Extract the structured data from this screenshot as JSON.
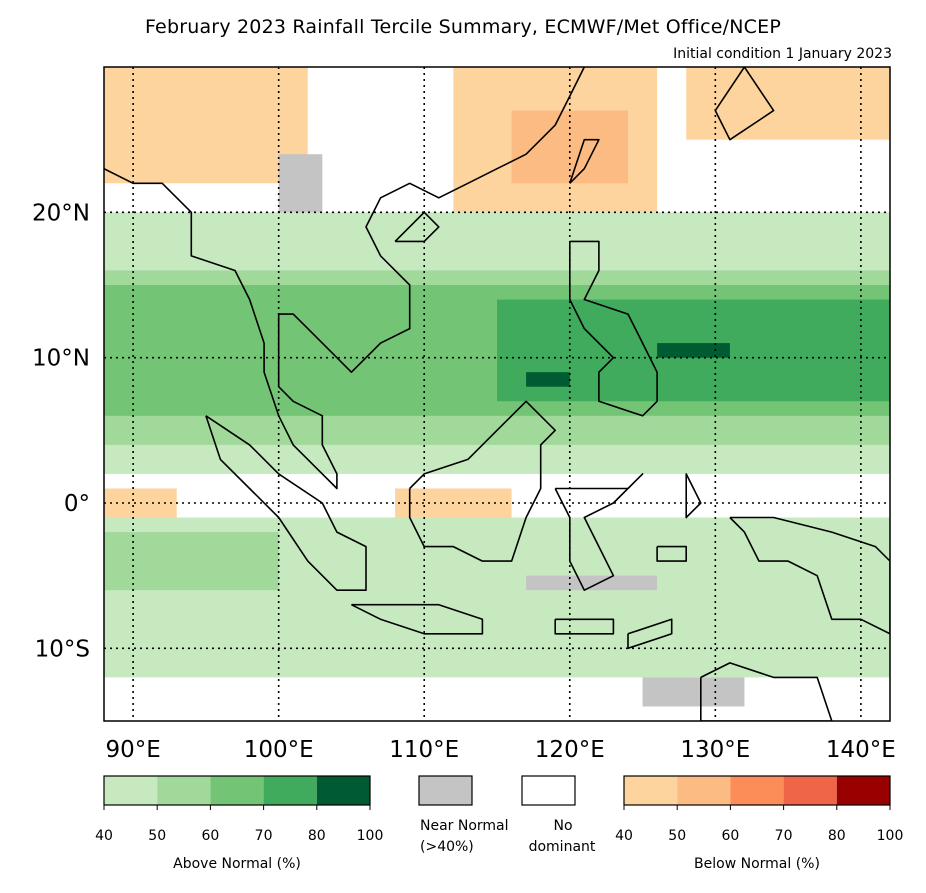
{
  "title": "February 2023 Rainfall Tercile Summary, ECMWF/Met Office/NCEP",
  "subtitle": "Initial condition 1 January 2023",
  "map": {
    "lon_range": [
      88,
      142
    ],
    "lat_range": [
      -15,
      30
    ],
    "lon_ticks": [
      {
        "value": 90,
        "label": "90°E"
      },
      {
        "value": 100,
        "label": "100°E"
      },
      {
        "value": 110,
        "label": "110°E"
      },
      {
        "value": 120,
        "label": "120°E"
      },
      {
        "value": 130,
        "label": "130°E"
      },
      {
        "value": 140,
        "label": "140°E"
      }
    ],
    "lat_ticks": [
      {
        "value": 20,
        "label": "20°N"
      },
      {
        "value": 10,
        "label": "10°N"
      },
      {
        "value": 0,
        "label": "0°"
      },
      {
        "value": -10,
        "label": "10°S"
      }
    ],
    "gridlines": "dotted",
    "colors": {
      "an40": "#c7e9c0",
      "an50": "#a1d99b",
      "an60": "#74c476",
      "an70": "#41ab5d",
      "an80": "#005a32",
      "bn40": "#fdd49e",
      "bn50": "#fdbb84",
      "bn60": "#fc8d59",
      "bn70": "#ef6548",
      "bn80": "#990000",
      "nn": "#c4c4c4",
      "coast": "#000000"
    },
    "regions": [
      {
        "category": "bn40",
        "lon": [
          88,
          102
        ],
        "lat": [
          22,
          30
        ]
      },
      {
        "category": "bn40",
        "lon": [
          112,
          126
        ],
        "lat": [
          20,
          30
        ]
      },
      {
        "category": "bn50",
        "lon": [
          116,
          124
        ],
        "lat": [
          22,
          27
        ]
      },
      {
        "category": "bn40",
        "lon": [
          128,
          142
        ],
        "lat": [
          25,
          30
        ]
      },
      {
        "category": "bn40",
        "lon": [
          88,
          93
        ],
        "lat": [
          -1,
          1
        ]
      },
      {
        "category": "bn40",
        "lon": [
          108,
          116
        ],
        "lat": [
          -4,
          1
        ]
      },
      {
        "category": "bn60",
        "lon": [
          121,
          123
        ],
        "lat": [
          -6,
          -3
        ]
      },
      {
        "category": "an40",
        "lon": [
          88,
          142
        ],
        "lat": [
          -12,
          -1
        ]
      },
      {
        "category": "an50",
        "lon": [
          88,
          100
        ],
        "lat": [
          -6,
          -2
        ]
      },
      {
        "category": "an40",
        "lon": [
          88,
          142
        ],
        "lat": [
          2,
          20
        ]
      },
      {
        "category": "an50",
        "lon": [
          88,
          142
        ],
        "lat": [
          4,
          16
        ]
      },
      {
        "category": "an60",
        "lon": [
          88,
          142
        ],
        "lat": [
          6,
          15
        ]
      },
      {
        "category": "an70",
        "lon": [
          115,
          142
        ],
        "lat": [
          7,
          14
        ]
      },
      {
        "category": "an80",
        "lon": [
          126,
          131
        ],
        "lat": [
          10,
          11
        ]
      },
      {
        "category": "an80",
        "lon": [
          117,
          120
        ],
        "lat": [
          8,
          9
        ]
      },
      {
        "category": "nn",
        "lon": [
          117,
          126
        ],
        "lat": [
          -6,
          -5
        ]
      },
      {
        "category": "nn",
        "lon": [
          125,
          132
        ],
        "lat": [
          -14,
          -12
        ]
      },
      {
        "category": "nn",
        "lon": [
          100,
          103
        ],
        "lat": [
          20,
          24
        ]
      }
    ],
    "coastlines": [
      [
        [
          88,
          23
        ],
        [
          90,
          22
        ],
        [
          92,
          22
        ],
        [
          94,
          20
        ],
        [
          94,
          17
        ],
        [
          97,
          16
        ],
        [
          98,
          14
        ],
        [
          99,
          11
        ],
        [
          99,
          9
        ],
        [
          100,
          6
        ],
        [
          101,
          4
        ],
        [
          103,
          2
        ],
        [
          104,
          1
        ],
        [
          104,
          2
        ],
        [
          103,
          4
        ],
        [
          103,
          6
        ],
        [
          101,
          7
        ],
        [
          100,
          8
        ],
        [
          100,
          10
        ],
        [
          100,
          13
        ],
        [
          101,
          13
        ],
        [
          103,
          11
        ],
        [
          105,
          9
        ],
        [
          106,
          10
        ],
        [
          107,
          11
        ],
        [
          109,
          12
        ],
        [
          109,
          15
        ],
        [
          107,
          17
        ],
        [
          106,
          19
        ],
        [
          107,
          21
        ],
        [
          109,
          22
        ],
        [
          111,
          21
        ],
        [
          113,
          22
        ],
        [
          115,
          23
        ],
        [
          117,
          24
        ],
        [
          119,
          26
        ],
        [
          120,
          28
        ],
        [
          121,
          30
        ]
      ],
      [
        [
          95,
          6
        ],
        [
          98,
          4
        ],
        [
          100,
          2
        ],
        [
          103,
          0
        ],
        [
          104,
          -2
        ],
        [
          106,
          -3
        ],
        [
          106,
          -6
        ],
        [
          104,
          -6
        ],
        [
          102,
          -4
        ],
        [
          100,
          -1
        ],
        [
          98,
          1
        ],
        [
          96,
          3
        ],
        [
          95,
          6
        ]
      ],
      [
        [
          105,
          -7
        ],
        [
          108,
          -7
        ],
        [
          111,
          -7
        ],
        [
          114,
          -8
        ],
        [
          114,
          -9
        ],
        [
          110,
          -9
        ],
        [
          107,
          -8
        ],
        [
          105,
          -7
        ]
      ],
      [
        [
          109,
          1
        ],
        [
          110,
          2
        ],
        [
          113,
          3
        ],
        [
          115,
          5
        ],
        [
          117,
          7
        ],
        [
          119,
          5
        ],
        [
          118,
          4
        ],
        [
          118,
          1
        ],
        [
          117,
          -1
        ],
        [
          116,
          -4
        ],
        [
          114,
          -4
        ],
        [
          112,
          -3
        ],
        [
          110,
          -3
        ],
        [
          109,
          -1
        ],
        [
          109,
          1
        ]
      ],
      [
        [
          119,
          1
        ],
        [
          121,
          1
        ],
        [
          124,
          1
        ],
        [
          125,
          2
        ],
        [
          123,
          0
        ],
        [
          121,
          -1
        ],
        [
          122,
          -3
        ],
        [
          123,
          -5
        ],
        [
          121,
          -6
        ],
        [
          120,
          -4
        ],
        [
          120,
          -1
        ],
        [
          119,
          1
        ]
      ],
      [
        [
          120,
          18
        ],
        [
          122,
          18
        ],
        [
          122,
          16
        ],
        [
          121,
          14
        ],
        [
          124,
          13
        ],
        [
          125,
          11
        ],
        [
          126,
          9
        ],
        [
          126,
          7
        ],
        [
          125,
          6
        ],
        [
          122,
          7
        ],
        [
          122,
          9
        ],
        [
          123,
          10
        ],
        [
          121,
          12
        ],
        [
          120,
          14
        ],
        [
          120,
          18
        ]
      ],
      [
        [
          120,
          22
        ],
        [
          121,
          25
        ],
        [
          122,
          25
        ],
        [
          121,
          23
        ],
        [
          120,
          22
        ]
      ],
      [
        [
          108,
          18
        ],
        [
          110,
          20
        ],
        [
          111,
          19
        ],
        [
          110,
          18
        ],
        [
          108,
          18
        ]
      ],
      [
        [
          131,
          -1
        ],
        [
          134,
          -1
        ],
        [
          138,
          -2
        ],
        [
          141,
          -3
        ],
        [
          142,
          -4
        ],
        [
          142,
          -9
        ],
        [
          140,
          -8
        ],
        [
          138,
          -8
        ],
        [
          137,
          -5
        ],
        [
          135,
          -4
        ],
        [
          133,
          -4
        ],
        [
          132,
          -2
        ],
        [
          131,
          -1
        ]
      ],
      [
        [
          129,
          -12
        ],
        [
          131,
          -11
        ],
        [
          134,
          -12
        ],
        [
          137,
          -12
        ],
        [
          138,
          -15
        ],
        [
          129,
          -15
        ],
        [
          129,
          -12
        ]
      ],
      [
        [
          124,
          -9
        ],
        [
          127,
          -8
        ],
        [
          127,
          -9
        ],
        [
          124,
          -10
        ],
        [
          124,
          -9
        ]
      ],
      [
        [
          119,
          -8
        ],
        [
          123,
          -8
        ],
        [
          123,
          -9
        ],
        [
          119,
          -9
        ],
        [
          119,
          -8
        ]
      ],
      [
        [
          128,
          1
        ],
        [
          128,
          2
        ],
        [
          129,
          0
        ],
        [
          128,
          -1
        ],
        [
          128,
          1
        ]
      ],
      [
        [
          126,
          -3
        ],
        [
          128,
          -3
        ],
        [
          128,
          -4
        ],
        [
          126,
          -4
        ],
        [
          126,
          -3
        ]
      ],
      [
        [
          132,
          30
        ],
        [
          134,
          27
        ],
        [
          131,
          25
        ],
        [
          130,
          27
        ],
        [
          132,
          30
        ]
      ]
    ]
  },
  "legend": {
    "above_normal": {
      "caption": "Above Normal (%)",
      "ticks": [
        "40",
        "50",
        "60",
        "70",
        "80",
        "100"
      ],
      "colors": [
        "#c7e9c0",
        "#a1d99b",
        "#74c476",
        "#41ab5d",
        "#005a32"
      ]
    },
    "near_normal": {
      "caption_line1": "Near Normal",
      "caption_line2": "(>40%)",
      "color": "#c4c4c4"
    },
    "no_dominant": {
      "caption_line1": "No",
      "caption_line2": "dominant",
      "color": "#ffffff"
    },
    "below_normal": {
      "caption": "Below Normal (%)",
      "ticks": [
        "40",
        "50",
        "60",
        "70",
        "80",
        "100"
      ],
      "colors": [
        "#fdd49e",
        "#fdbb84",
        "#fc8d59",
        "#ef6548",
        "#990000"
      ]
    }
  }
}
